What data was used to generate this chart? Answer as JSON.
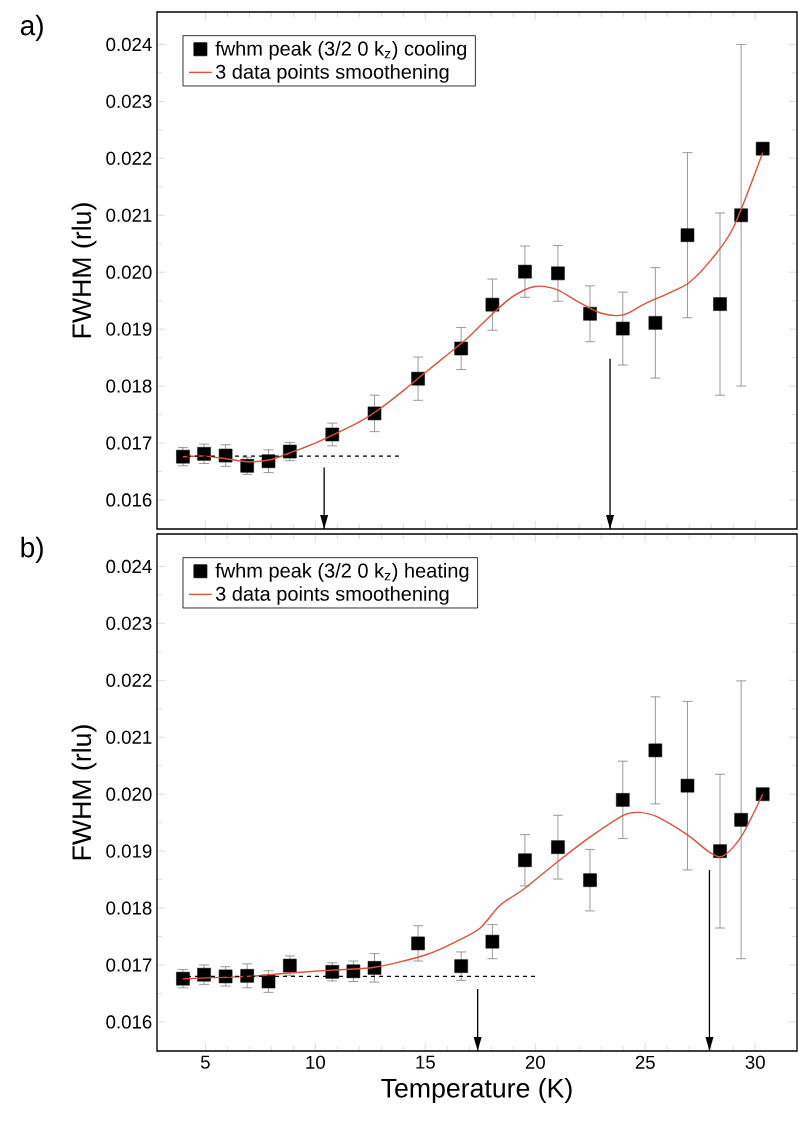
{
  "chart_data": [
    {
      "type": "scatter",
      "title": "a)",
      "ylabel": "FWHM (rlu)",
      "xlim": [
        2.8,
        31.9
      ],
      "ylim": [
        0.01549,
        0.02457
      ],
      "xticks": [
        5,
        10,
        15,
        20,
        25,
        30
      ],
      "tick_labels": "y",
      "yticks": [
        0.016,
        0.017,
        0.018,
        0.019,
        {
          "value": 0.02,
          "label": "0.020"
        },
        0.021,
        0.022,
        0.023,
        0.024
      ],
      "legend": "top left",
      "grid": false,
      "series": [
        {
          "name": "fwhm peak (3/2 0 k$_{z}$) cooling",
          "color": "#000000",
          "marker": "square",
          "x": [
            3.98,
            4.94,
            5.92,
            6.9,
            7.87,
            8.84,
            10.77,
            12.69,
            14.67,
            16.63,
            18.05,
            19.53,
            21.03,
            22.49,
            23.98,
            25.46,
            26.92,
            28.4,
            29.36,
            30.34
          ],
          "values": [
            0.01676,
            0.01681,
            0.01678,
            0.0166,
            0.01668,
            0.01685,
            0.01715,
            0.01752,
            0.01813,
            0.01866,
            0.01943,
            0.02001,
            0.01998,
            0.01927,
            0.01901,
            0.01911,
            0.02065,
            0.01944,
            0.021,
            0.02217
          ],
          "errors": [
            0.00016,
            0.00017,
            0.00019,
            0.00015,
            0.0002,
            0.00016,
            0.0002,
            0.00032,
            0.00038,
            0.00037,
            0.00045,
            0.00045,
            0.00049,
            0.00049,
            0.00064,
            0.00097,
            0.00145,
            0.0016,
            0.003,
            null
          ]
        },
        {
          "type": "line",
          "name": "3 data points smoothening",
          "color": "#e0503c",
          "marker": "none",
          "line_style": "solid",
          "x": [
            3.98,
            5,
            6,
            7,
            8,
            9,
            10,
            11,
            12,
            13,
            14,
            15,
            16,
            17,
            18,
            19,
            20,
            21,
            22,
            23,
            24,
            25,
            26,
            27,
            28,
            29,
            30.34
          ],
          "values": [
            0.01676,
            0.01677,
            0.01672,
            0.01667,
            0.01671,
            0.01685,
            0.017,
            0.01718,
            0.01737,
            0.01762,
            0.01792,
            0.01824,
            0.01855,
            0.01887,
            0.01925,
            0.01958,
            0.01975,
            0.01969,
            0.01947,
            0.01928,
            0.01925,
            0.01945,
            0.01962,
            0.01982,
            0.02022,
            0.02078,
            0.0221
          ]
        },
        {
          "type": "line",
          "color": "#000000",
          "marker": "none",
          "line_style": "dashed",
          "x": [
            3.8,
            13.9
          ],
          "values": [
            0.01677,
            0.01677
          ]
        },
        {
          "type": "line",
          "color": "#000000",
          "marker": "none",
          "line_style": "solid",
          "x": [
            10.4,
            10.4
          ],
          "values": [
            0.01657,
            0.01549
          ]
        },
        {
          "type": "line",
          "color": "#000000",
          "marker": "none",
          "line_style": "solid",
          "x": [
            23.4,
            23.4
          ],
          "values": [
            0.01848,
            0.01549
          ]
        }
      ]
    },
    {
      "type": "scatter",
      "title": "b)",
      "xlabel": "Temperature (K)",
      "ylabel": "FWHM (rlu)",
      "xlim": [
        2.8,
        31.9
      ],
      "ylim": [
        0.01549,
        0.02457
      ],
      "xticks": [
        5,
        10,
        15,
        20,
        25,
        30
      ],
      "yticks": [
        0.016,
        0.017,
        0.018,
        0.019,
        {
          "value": 0.02,
          "label": "0.020"
        },
        0.021,
        0.022,
        0.023,
        0.024
      ],
      "legend": "top left",
      "grid": false,
      "series": [
        {
          "name": "fwhm peak (3/2 0 k$_{z}$) heating",
          "color": "#000000",
          "marker": "square",
          "x": [
            3.98,
            4.94,
            5.92,
            6.9,
            7.87,
            8.84,
            10.77,
            11.73,
            12.69,
            14.67,
            16.63,
            18.05,
            19.53,
            21.03,
            22.49,
            23.98,
            25.46,
            26.92,
            28.4,
            29.36,
            30.34
          ],
          "values": [
            0.01676,
            0.01683,
            0.0168,
            0.01681,
            0.01671,
            0.01699,
            0.01688,
            0.01689,
            0.01695,
            0.01738,
            0.01698,
            0.01741,
            0.01884,
            0.01907,
            0.01849,
            0.0199,
            0.02077,
            0.02015,
            0.019,
            0.01955,
            0.02
          ],
          "errors": [
            0.00016,
            0.00017,
            0.00017,
            0.00021,
            0.00019,
            0.00017,
            0.00016,
            0.00018,
            0.00025,
            0.00031,
            0.00025,
            0.0003,
            0.00045,
            0.00056,
            0.00054,
            0.00068,
            0.00094,
            0.00148,
            0.00135,
            0.00244,
            null
          ]
        },
        {
          "type": "line",
          "name": "3 data points smoothening",
          "color": "#e0503c",
          "marker": "none",
          "line_style": "solid",
          "x": [
            3.98,
            6.9,
            8.84,
            10.77,
            12.69,
            15.04,
            16.55,
            17.5,
            18.4,
            19.5,
            21,
            22.5,
            24,
            24.7,
            25.5,
            26.9,
            28,
            28.57,
            29.36,
            30.34
          ],
          "values": [
            0.01676,
            0.0168,
            0.01686,
            0.01691,
            0.01696,
            0.01718,
            0.01744,
            0.01765,
            0.01805,
            0.01834,
            0.01881,
            0.01925,
            0.01963,
            0.01968,
            0.01961,
            0.01929,
            0.01896,
            0.01892,
            0.01925,
            0.02
          ]
        },
        {
          "type": "line",
          "color": "#000000",
          "marker": "none",
          "line_style": "dashed",
          "x": [
            3.8,
            20.07
          ],
          "values": [
            0.0168,
            0.0168
          ]
        },
        {
          "type": "line",
          "color": "#000000",
          "marker": "none",
          "line_style": "solid",
          "x": [
            17.38,
            17.38
          ],
          "values": [
            0.01658,
            0.01549
          ]
        },
        {
          "type": "line",
          "color": "#000000",
          "marker": "none",
          "line_style": "solid",
          "x": [
            27.92,
            27.92
          ],
          "values": [
            0.01867,
            0.01549
          ]
        }
      ]
    }
  ]
}
